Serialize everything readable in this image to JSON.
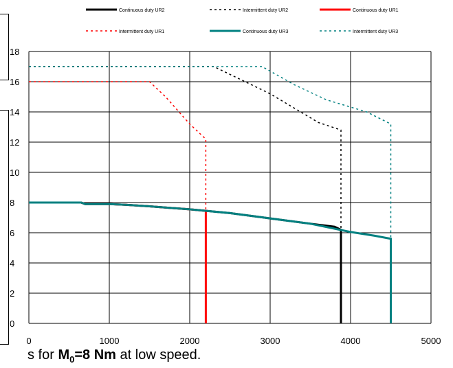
{
  "chart_data": {
    "type": "line",
    "xlim": [
      0,
      5000
    ],
    "ylim": [
      0,
      18
    ],
    "x_ticks": [
      0,
      1000,
      2000,
      3000,
      4000,
      5000
    ],
    "y_ticks": [
      0,
      2,
      4,
      6,
      8,
      10,
      12,
      14,
      16,
      18
    ],
    "x_tick_labels": [
      "0",
      "1000",
      "2000",
      "3000",
      "4000",
      "5000"
    ],
    "y_tick_labels": [
      "0",
      "2",
      "4",
      "6",
      "8",
      "10",
      "12",
      "14",
      "16",
      "18"
    ],
    "grid": true,
    "legend_position": "top",
    "series": [
      {
        "name": "Continuous duty UR2",
        "color": "#000000",
        "dash": "solid",
        "points": [
          [
            0,
            8
          ],
          [
            650,
            8
          ],
          [
            700,
            7.9
          ],
          [
            1000,
            7.9
          ],
          [
            1200,
            7.85
          ],
          [
            1500,
            7.75
          ],
          [
            2000,
            7.55
          ],
          [
            2500,
            7.3
          ],
          [
            3000,
            6.95
          ],
          [
            3500,
            6.6
          ],
          [
            3800,
            6.4
          ],
          [
            3880,
            6.2
          ],
          [
            3880,
            0
          ]
        ]
      },
      {
        "name": "Intermittent duty UR2",
        "color": "#000000",
        "dash": "dotted",
        "points": [
          [
            0,
            17
          ],
          [
            2300,
            17
          ],
          [
            3000,
            15.2
          ],
          [
            3600,
            13.3
          ],
          [
            3880,
            12.8
          ],
          [
            3880,
            0
          ]
        ]
      },
      {
        "name": "Continuous duty UR1",
        "color": "#ff0000",
        "dash": "solid",
        "points": [
          [
            0,
            8
          ],
          [
            650,
            8
          ],
          [
            700,
            7.9
          ],
          [
            1000,
            7.9
          ],
          [
            1200,
            7.85
          ],
          [
            1500,
            7.75
          ],
          [
            2000,
            7.55
          ],
          [
            2200,
            7.45
          ],
          [
            2200,
            0
          ]
        ]
      },
      {
        "name": "Intermittent duty UR1",
        "color": "#ff0000",
        "dash": "dotted",
        "points": [
          [
            0,
            16
          ],
          [
            1500,
            16
          ],
          [
            1700,
            15
          ],
          [
            2000,
            13.2
          ],
          [
            2200,
            12.2
          ],
          [
            2200,
            0
          ]
        ]
      },
      {
        "name": "Continuous duty UR3",
        "color": "#008080",
        "dash": "solid",
        "points": [
          [
            0,
            8
          ],
          [
            650,
            8
          ],
          [
            700,
            7.9
          ],
          [
            1000,
            7.9
          ],
          [
            1200,
            7.85
          ],
          [
            1500,
            7.75
          ],
          [
            2000,
            7.55
          ],
          [
            2500,
            7.3
          ],
          [
            3000,
            6.95
          ],
          [
            3500,
            6.6
          ],
          [
            4000,
            6.05
          ],
          [
            4300,
            5.8
          ],
          [
            4500,
            5.6
          ],
          [
            4500,
            0
          ]
        ]
      },
      {
        "name": "Intermittent duty UR3",
        "color": "#008080",
        "dash": "dotted",
        "points": [
          [
            0,
            17
          ],
          [
            2900,
            17
          ],
          [
            3300,
            15.8
          ],
          [
            3700,
            14.8
          ],
          [
            4200,
            14.0
          ],
          [
            4500,
            13.2
          ],
          [
            4500,
            0
          ]
        ]
      }
    ]
  },
  "caption": {
    "prefix": "s for ",
    "bold": "M",
    "sub": "0",
    "bold_suffix": "=8 Nm",
    "suffix": " at low speed."
  }
}
